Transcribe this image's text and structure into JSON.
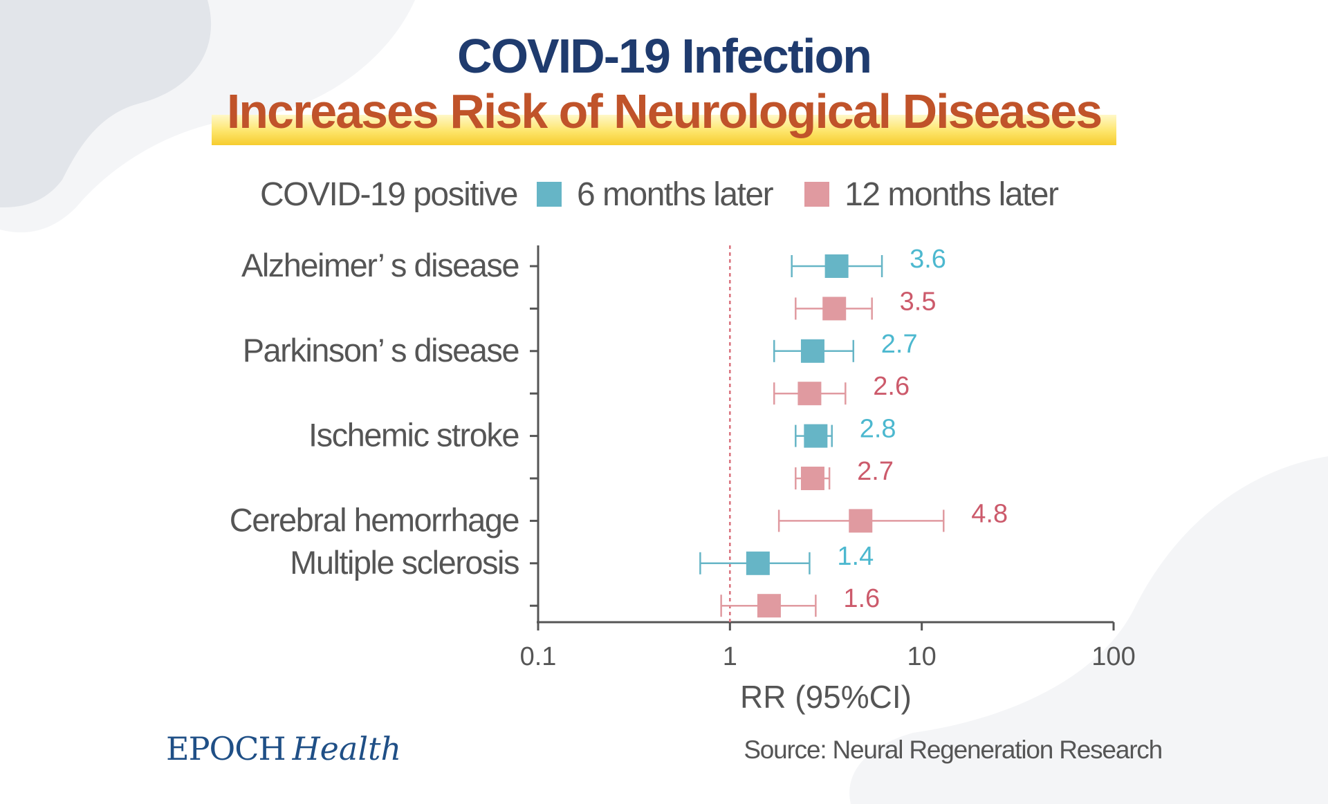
{
  "title": {
    "line1": "COVID-19 Infection",
    "line2": "Increases Risk of Neurological Diseases"
  },
  "legend": {
    "group_label": "COVID-19 positive",
    "items": [
      {
        "label": "6 months later",
        "color": "#66b5c6"
      },
      {
        "label": "12 months later",
        "color": "#e09aa0"
      }
    ]
  },
  "colors": {
    "six_months_marker": "#66b5c6",
    "six_months_text": "#4cb8cf",
    "twelve_months_marker": "#e09aa0",
    "twelve_months_text": "#cc5a6b",
    "axis": "#555555",
    "reference_line": "#d9707c"
  },
  "chart_data": {
    "type": "forest",
    "x_scale": "log",
    "xlim": [
      0.1,
      100
    ],
    "x_ticks": [
      0.1,
      1,
      10,
      100
    ],
    "x_tick_labels": [
      "0.1",
      "1",
      "10",
      "100"
    ],
    "xlabel": "RR (95%CI)",
    "reference_value": 1,
    "categories": [
      "Alzheimer’ s disease",
      "Parkinson’ s disease",
      "Ischemic stroke",
      "Cerebral hemorrhage",
      "Multiple sclerosis"
    ],
    "rows": [
      {
        "category": "Alzheimer’ s disease",
        "series": "6 months later",
        "rr": 3.6,
        "ci_low": 2.1,
        "ci_high": 6.2,
        "label": "3.6"
      },
      {
        "category": "Alzheimer’ s disease",
        "series": "12 months later",
        "rr": 3.5,
        "ci_low": 2.2,
        "ci_high": 5.5,
        "label": "3.5"
      },
      {
        "category": "Parkinson’ s disease",
        "series": "6 months later",
        "rr": 2.7,
        "ci_low": 1.7,
        "ci_high": 4.4,
        "label": "2.7"
      },
      {
        "category": "Parkinson’ s disease",
        "series": "12 months later",
        "rr": 2.6,
        "ci_low": 1.7,
        "ci_high": 4.0,
        "label": "2.6"
      },
      {
        "category": "Ischemic stroke",
        "series": "6 months later",
        "rr": 2.8,
        "ci_low": 2.2,
        "ci_high": 3.4,
        "label": "2.8"
      },
      {
        "category": "Ischemic stroke",
        "series": "12 months later",
        "rr": 2.7,
        "ci_low": 2.2,
        "ci_high": 3.3,
        "label": "2.7"
      },
      {
        "category": "Cerebral hemorrhage",
        "series": "12 months later",
        "rr": 4.8,
        "ci_low": 1.8,
        "ci_high": 13.0,
        "label": "4.8"
      },
      {
        "category": "Multiple sclerosis",
        "series": "6 months later",
        "rr": 1.4,
        "ci_low": 0.7,
        "ci_high": 2.6,
        "label": "1.4"
      },
      {
        "category": "Multiple sclerosis",
        "series": "12 months later",
        "rr": 1.6,
        "ci_low": 0.9,
        "ci_high": 2.8,
        "label": "1.6"
      }
    ]
  },
  "footer": {
    "brand_primary": "EPOCH",
    "brand_secondary": "Health",
    "source": "Source: Neural Regeneration Research"
  }
}
